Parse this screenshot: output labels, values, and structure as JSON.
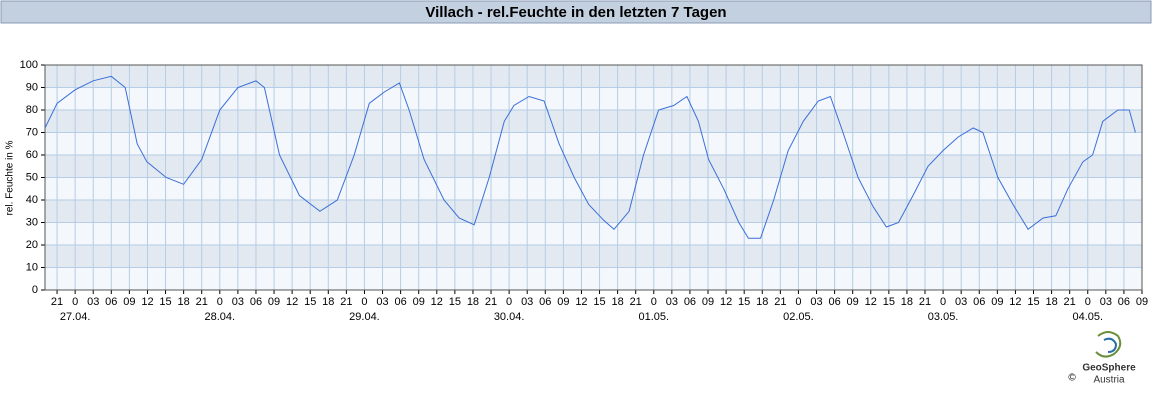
{
  "chart_data": {
    "type": "line",
    "title": "Villach - rel.Feuchte in den letzten 7 Tagen",
    "y_label": "rel. Feuchte in %",
    "credit": "GeoSphere",
    "credit_sub": "Austria",
    "copyright": "©",
    "color": "#3a6fd8",
    "grid": true,
    "xlim": [
      -5,
      177
    ],
    "ylim": [
      0,
      100
    ],
    "yticks": [
      0,
      10,
      20,
      30,
      40,
      50,
      60,
      70,
      80,
      90,
      100
    ],
    "xticks": [
      {
        "value": -3,
        "label": "21"
      },
      {
        "value": 0,
        "label": "0"
      },
      {
        "value": 3,
        "label": "03"
      },
      {
        "value": 6,
        "label": "06"
      },
      {
        "value": 9,
        "label": "09"
      },
      {
        "value": 12,
        "label": "12"
      },
      {
        "value": 15,
        "label": "15"
      },
      {
        "value": 18,
        "label": "18"
      },
      {
        "value": 21,
        "label": "21"
      },
      {
        "value": 24,
        "label": "0"
      },
      {
        "value": 27,
        "label": "03"
      },
      {
        "value": 30,
        "label": "06"
      },
      {
        "value": 33,
        "label": "09"
      },
      {
        "value": 36,
        "label": "12"
      },
      {
        "value": 39,
        "label": "15"
      },
      {
        "value": 42,
        "label": "18"
      },
      {
        "value": 45,
        "label": "21"
      },
      {
        "value": 48,
        "label": "0"
      },
      {
        "value": 51,
        "label": "03"
      },
      {
        "value": 54,
        "label": "06"
      },
      {
        "value": 57,
        "label": "09"
      },
      {
        "value": 60,
        "label": "12"
      },
      {
        "value": 63,
        "label": "15"
      },
      {
        "value": 66,
        "label": "18"
      },
      {
        "value": 69,
        "label": "21"
      },
      {
        "value": 72,
        "label": "0"
      },
      {
        "value": 75,
        "label": "03"
      },
      {
        "value": 78,
        "label": "06"
      },
      {
        "value": 81,
        "label": "09"
      },
      {
        "value": 84,
        "label": "12"
      },
      {
        "value": 87,
        "label": "15"
      },
      {
        "value": 90,
        "label": "18"
      },
      {
        "value": 93,
        "label": "21"
      },
      {
        "value": 96,
        "label": "0"
      },
      {
        "value": 99,
        "label": "03"
      },
      {
        "value": 102,
        "label": "06"
      },
      {
        "value": 105,
        "label": "09"
      },
      {
        "value": 108,
        "label": "12"
      },
      {
        "value": 111,
        "label": "15"
      },
      {
        "value": 114,
        "label": "18"
      },
      {
        "value": 117,
        "label": "21"
      },
      {
        "value": 120,
        "label": "0"
      },
      {
        "value": 123,
        "label": "03"
      },
      {
        "value": 126,
        "label": "06"
      },
      {
        "value": 129,
        "label": "09"
      },
      {
        "value": 132,
        "label": "12"
      },
      {
        "value": 135,
        "label": "15"
      },
      {
        "value": 138,
        "label": "18"
      },
      {
        "value": 141,
        "label": "21"
      },
      {
        "value": 144,
        "label": "0"
      },
      {
        "value": 147,
        "label": "03"
      },
      {
        "value": 150,
        "label": "06"
      },
      {
        "value": 153,
        "label": "09"
      },
      {
        "value": 156,
        "label": "12"
      },
      {
        "value": 159,
        "label": "15"
      },
      {
        "value": 162,
        "label": "18"
      },
      {
        "value": 165,
        "label": "21"
      },
      {
        "value": 168,
        "label": "0"
      },
      {
        "value": 171,
        "label": "03"
      },
      {
        "value": 174,
        "label": "06"
      },
      {
        "value": 177,
        "label": "09"
      }
    ],
    "date_ticks": [
      {
        "value": 0,
        "label": "27.04."
      },
      {
        "value": 24,
        "label": "28.04."
      },
      {
        "value": 48,
        "label": "29.04."
      },
      {
        "value": 72,
        "label": "30.04."
      },
      {
        "value": 96,
        "label": "01.05."
      },
      {
        "value": 120,
        "label": "02.05."
      },
      {
        "value": 144,
        "label": "03.05."
      },
      {
        "value": 168,
        "label": "04.05."
      }
    ],
    "x": [
      -5.0,
      -3.0,
      0,
      3.0,
      6.0,
      8.3,
      10.3,
      11.9,
      15.1,
      18.0,
      21.0,
      24.0,
      27.0,
      30.0,
      31.4,
      33.9,
      37.2,
      40.6,
      43.5,
      46.3,
      48.8,
      51.3,
      53.8,
      55.4,
      57.9,
      61.2,
      63.7,
      66.2,
      68.7,
      71.2,
      72.8,
      75.3,
      77.8,
      80.3,
      82.8,
      85.2,
      87.7,
      89.4,
      91.9,
      94.3,
      96.8,
      99.3,
      101.5,
      103.4,
      105.1,
      107.6,
      110.1,
      111.7,
      113.7,
      115.9,
      118.3,
      120.8,
      123.3,
      125.3,
      127.4,
      129.9,
      132.4,
      134.6,
      136.6,
      139.0,
      141.5,
      144.0,
      146.5,
      149.0,
      150.6,
      153.1,
      155.6,
      158.1,
      160.6,
      162.7,
      164.7,
      167.2,
      168.8,
      170.5,
      173.0,
      174.9,
      175.9
    ],
    "values": [
      72,
      83,
      89,
      93,
      95,
      90,
      65,
      57,
      50,
      47,
      58,
      80,
      90,
      93,
      90,
      60,
      42,
      35,
      40,
      60,
      83,
      88,
      92,
      80,
      58,
      40,
      32,
      29,
      50,
      75,
      82,
      86,
      84,
      65,
      50,
      38,
      31,
      27,
      35,
      60,
      80,
      82,
      86,
      75,
      58,
      45,
      30,
      23,
      23,
      40,
      62,
      75,
      84,
      86,
      70,
      50,
      37,
      28,
      30,
      42,
      55,
      62,
      68,
      72,
      70,
      50,
      38,
      27,
      32,
      33,
      45,
      57,
      60,
      75,
      80,
      80,
      70
    ]
  }
}
